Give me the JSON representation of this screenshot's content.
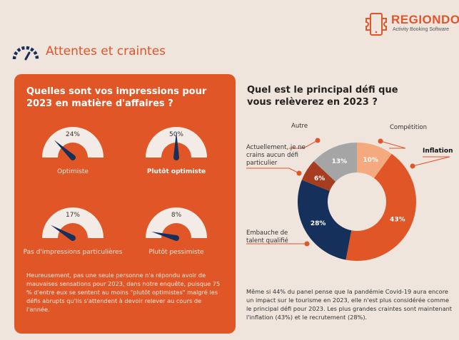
{
  "brand": {
    "name": "REGIONDO",
    "tagline": "Activity Booking Software",
    "color": "#e0552a"
  },
  "section_title": "Attentes et craintes",
  "left": {
    "question": "Quelles sont vos impressions pour 2023 en matière d'affaires ?",
    "note": "Heureusement, pas une seule personne n'a répondu avoir de mauvaises sensations pour 2023, dans notre enquête, puisque 75 % d'entre eux se sentent au moins \"plutôt optimistes\" malgré les défis abrupts qu'ils s'attendent à devoir relever au cours de l'année."
  },
  "right": {
    "question": "Quel est le principal défi que vous relèverez en 2023 ?",
    "note": "Même si 44% du panel pense que la pandémie Covid-19 aura encore un impact sur le tourisme en 2023, elle n'est plus considérée comme le principal défi pour 2023. Les plus grandes craintes sont maintenant l'inflation (43%) et le recrutement (28%)."
  },
  "chart_data": [
    {
      "type": "gauge",
      "categories": [
        "Optimiste",
        "Plutôt optimiste",
        "Pas d'impressions particulières",
        "Plutôt pessimiste"
      ],
      "values": [
        24,
        50,
        17,
        8
      ],
      "labels": [
        "24%",
        "50%",
        "17%",
        "8%"
      ],
      "emphasized": "Plutôt optimiste",
      "range": [
        0,
        100
      ]
    },
    {
      "type": "pie",
      "variant": "donut",
      "categories": [
        "Compétition",
        "Inflation",
        "Embauche de talent qualifié",
        "Actuellement, je ne crains aucun défi particulier",
        "Autre"
      ],
      "values": [
        10,
        43,
        28,
        6,
        13
      ],
      "labels": [
        "10%",
        "43%",
        "28%",
        "6%",
        "13%"
      ],
      "colors": [
        "#f4a97e",
        "#e05626",
        "#15305a",
        "#a63c20",
        "#a5a5a5"
      ],
      "emphasized": "Inflation"
    }
  ]
}
